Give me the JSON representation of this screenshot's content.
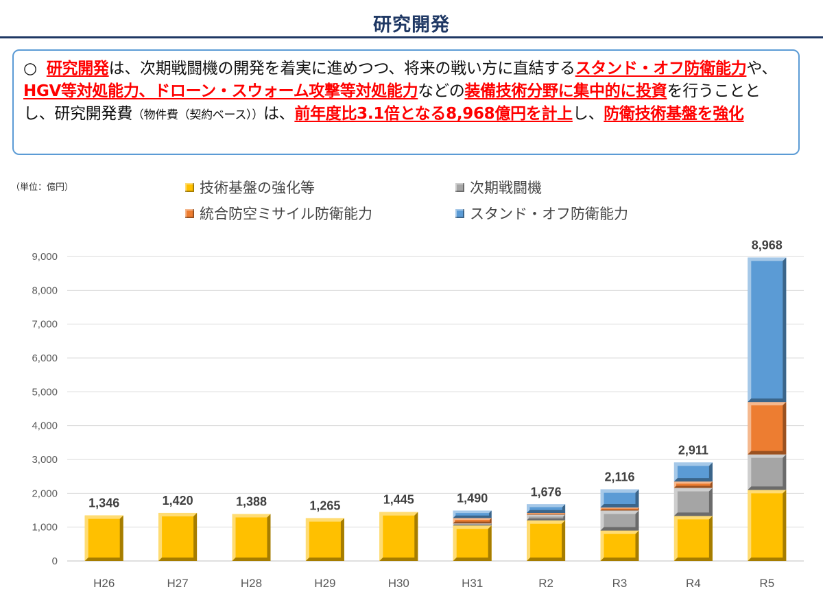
{
  "page": {
    "title": "研究開発"
  },
  "summary": {
    "bullet": "○",
    "parts": [
      {
        "text": "研究開発",
        "style": "em"
      },
      {
        "text": "は、次期戦闘機の開発を着実に進めつつ、将来の戦い方に直結する",
        "style": "normal"
      },
      {
        "text": "スタンド・オフ防衛能力",
        "style": "em"
      },
      {
        "text": "や、",
        "style": "normal"
      },
      {
        "text": "HGV等対処能力、ドローン・スウォーム攻撃等対処能力",
        "style": "em"
      },
      {
        "text": "などの",
        "style": "normal"
      },
      {
        "text": "装備技術分野に集中的に投資",
        "style": "em"
      },
      {
        "text": "を行うこととし、研究開発費",
        "style": "normal"
      },
      {
        "text": "（物件費（契約ベース））",
        "style": "small"
      },
      {
        "text": "は、",
        "style": "normal"
      },
      {
        "text": "前年度比3.1倍となる8,968億円を計上",
        "style": "em"
      },
      {
        "text": "し、",
        "style": "normal"
      },
      {
        "text": "防衛技術基盤を強化",
        "style": "em"
      }
    ]
  },
  "chart_data": {
    "type": "bar",
    "stacked": true,
    "unit_label": "（単位：億円）",
    "categories": [
      "H26",
      "H27",
      "H28",
      "H29",
      "H30",
      "H31",
      "R2",
      "R3",
      "R4",
      "R5"
    ],
    "series": [
      {
        "name": "技術基盤の強化等",
        "color": "#ffc000",
        "values": [
          1346,
          1420,
          1388,
          1265,
          1445,
          1050,
          1200,
          900,
          1330,
          2100
        ]
      },
      {
        "name": "次期戦闘機",
        "color": "#a5a5a5",
        "values": [
          0,
          0,
          0,
          0,
          0,
          60,
          170,
          590,
          830,
          1050
        ]
      },
      {
        "name": "統合防空ミサイル防衛能力",
        "color": "#ed7d31",
        "values": [
          0,
          0,
          0,
          0,
          0,
          160,
          50,
          90,
          190,
          1550
        ]
      },
      {
        "name": "スタンド・オフ防衛能力",
        "color": "#5b9bd5",
        "values": [
          0,
          0,
          0,
          0,
          0,
          220,
          256,
          536,
          561,
          4268
        ]
      }
    ],
    "totals": [
      "1,346",
      "1,420",
      "1,388",
      "1,265",
      "1,445",
      "1,490",
      "1,676",
      "2,116",
      "2,911",
      "8,968"
    ],
    "yticks": [
      "0",
      "1,000",
      "2,000",
      "3,000",
      "4,000",
      "5,000",
      "6,000",
      "7,000",
      "8,000",
      "9,000"
    ],
    "ylim": [
      0,
      9000
    ],
    "grid": true,
    "legend_position": "top"
  }
}
